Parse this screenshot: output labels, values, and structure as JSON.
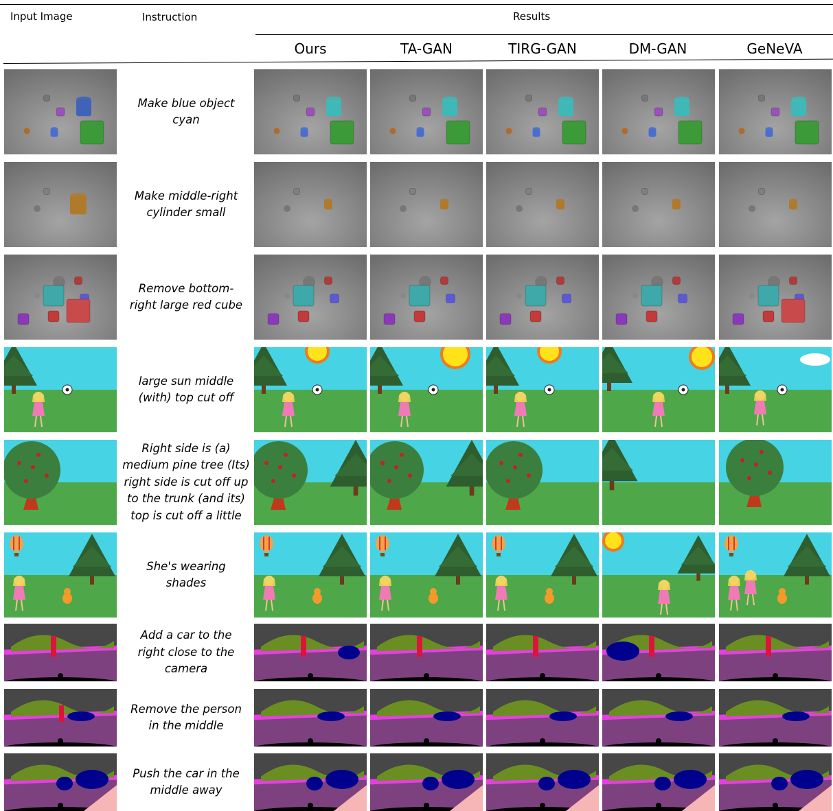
{
  "header": {
    "input_label": "Input Image",
    "instruction_label": "Instruction",
    "results_label": "Results",
    "methods": [
      "Ours",
      "TA-GAN",
      "TIRG-GAN",
      "DM-GAN",
      "GeNeVA"
    ]
  },
  "rows": [
    {
      "type": "clevr",
      "instruction": [
        "Make blue object",
        "cyan"
      ]
    },
    {
      "type": "clevr",
      "instruction": [
        "Make middle-right",
        "cylinder small"
      ]
    },
    {
      "type": "clevr",
      "instruction": [
        "Remove bottom-",
        "right large red cube"
      ]
    },
    {
      "type": "codraw",
      "instruction": [
        "large sun middle",
        "(with) top cut off"
      ]
    },
    {
      "type": "codraw",
      "instruction": [
        "Right side is (a)",
        "medium pine tree (Its)",
        "right side is cut off up",
        "to the trunk (and its)",
        "top is cut off a little"
      ]
    },
    {
      "type": "codraw",
      "instruction": [
        "She's wearing",
        "shades"
      ]
    },
    {
      "type": "segmap",
      "instruction": [
        "Add a car to the",
        "right close to the",
        "camera"
      ]
    },
    {
      "type": "segmap",
      "instruction": [
        "Remove the person",
        "in the middle"
      ]
    },
    {
      "type": "segmap",
      "instruction": [
        "Push the car in the",
        "middle away"
      ]
    }
  ]
}
